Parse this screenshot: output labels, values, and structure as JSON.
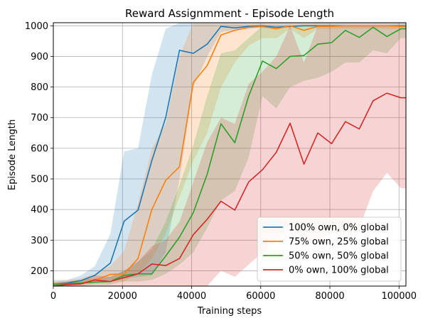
{
  "chart_data": {
    "type": "line",
    "title": "Reward Assignmment - Episode Length",
    "xlabel": "Training steps",
    "ylabel": "Episode Length",
    "xlim": [
      0,
      102000
    ],
    "ylim": [
      150,
      1010
    ],
    "xticks": [
      0,
      20000,
      40000,
      60000,
      80000,
      100000
    ],
    "yticks": [
      200,
      300,
      400,
      500,
      600,
      700,
      800,
      900,
      1000
    ],
    "grid": true,
    "legend_position": "bottom-right",
    "series": [
      {
        "name": "100% own, 0% global",
        "color": "#1f77b4",
        "x": [
          0,
          4000,
          8000,
          12000,
          16500,
          20500,
          24500,
          28500,
          32500,
          36500,
          40500,
          44500,
          48500,
          52500,
          56500,
          60500,
          64500,
          68500,
          72500,
          76500,
          80500,
          84500,
          88500,
          92500,
          96500,
          100500,
          102000
        ],
        "y": [
          158,
          160,
          168,
          185,
          225,
          362,
          398,
          560,
          700,
          920,
          910,
          940,
          998,
          993,
          998,
          1000,
          995,
          998,
          1000,
          1000,
          1000,
          1000,
          1000,
          1000,
          1000,
          1000,
          1000
        ],
        "lower": [
          165,
          162,
          162,
          165,
          170,
          175,
          180,
          185,
          260,
          500,
          800,
          900,
          980,
          985,
          990,
          993,
          990,
          995,
          998,
          998,
          998,
          998,
          998,
          998,
          998,
          998,
          998
        ],
        "upper": [
          170,
          170,
          185,
          215,
          320,
          590,
          600,
          840,
          990,
          1010,
          1010,
          1010,
          1010,
          1010,
          1010,
          1010,
          1010,
          1010,
          1010,
          1010,
          1010,
          1010,
          1010,
          1010,
          1010,
          1010,
          1010
        ]
      },
      {
        "name": "75% own, 25% global",
        "color": "#ff7f0e",
        "x": [
          0,
          4000,
          8000,
          12000,
          16500,
          20500,
          24500,
          28500,
          32500,
          36500,
          40500,
          44500,
          48500,
          52500,
          56500,
          60500,
          64500,
          68500,
          72500,
          76500,
          80500,
          84500,
          88500,
          92500,
          96500,
          100500,
          102000
        ],
        "y": [
          158,
          158,
          160,
          170,
          188,
          190,
          240,
          400,
          495,
          540,
          815,
          870,
          970,
          985,
          995,
          998,
          990,
          1000,
          985,
          998,
          998,
          1000,
          1000,
          1000,
          1000,
          998,
          998
        ],
        "lower": [
          150,
          150,
          155,
          160,
          165,
          165,
          190,
          240,
          320,
          440,
          560,
          650,
          800,
          880,
          935,
          960,
          960,
          990,
          960,
          990,
          990,
          990,
          990,
          990,
          990,
          990,
          990
        ],
        "upper": [
          165,
          170,
          175,
          190,
          215,
          265,
          420,
          600,
          680,
          900,
          1010,
          1010,
          1010,
          1010,
          1010,
          1010,
          1010,
          1010,
          1010,
          1010,
          1010,
          1010,
          1010,
          1010,
          1010,
          1010,
          1010
        ]
      },
      {
        "name": "50% own, 50% global",
        "color": "#2ca02c",
        "x": [
          0,
          4000,
          8000,
          12000,
          16500,
          20500,
          24500,
          28500,
          32500,
          36500,
          40500,
          44500,
          48500,
          52500,
          56500,
          60500,
          64500,
          68500,
          72500,
          76500,
          80500,
          84500,
          88500,
          92500,
          96500,
          100500,
          102000
        ],
        "y": [
          155,
          158,
          160,
          163,
          165,
          185,
          190,
          190,
          248,
          310,
          390,
          515,
          680,
          618,
          770,
          885,
          860,
          900,
          903,
          940,
          945,
          985,
          962,
          995,
          965,
          990,
          990
        ],
        "lower": [
          150,
          150,
          150,
          155,
          155,
          165,
          165,
          170,
          190,
          220,
          260,
          340,
          430,
          460,
          570,
          770,
          730,
          800,
          820,
          830,
          850,
          880,
          880,
          920,
          910,
          960,
          960
        ],
        "upper": [
          165,
          165,
          170,
          175,
          180,
          200,
          230,
          270,
          360,
          480,
          610,
          770,
          910,
          920,
          960,
          1000,
          990,
          1000,
          1000,
          1000,
          1000,
          1000,
          1000,
          1000,
          1000,
          1000,
          1000
        ]
      },
      {
        "name": "0% own, 100% global",
        "color": "#d62728",
        "x": [
          0,
          4000,
          8000,
          12000,
          16500,
          20500,
          24500,
          28500,
          32500,
          36500,
          40500,
          44500,
          48500,
          52500,
          56500,
          60500,
          64500,
          68500,
          72500,
          76500,
          80500,
          84500,
          88500,
          92500,
          96500,
          100500,
          102000
        ],
        "y": [
          150,
          155,
          157,
          170,
          165,
          178,
          190,
          222,
          217,
          240,
          318,
          368,
          427,
          398,
          490,
          530,
          587,
          682,
          548,
          650,
          615,
          687,
          663,
          755,
          780,
          765,
          765
        ],
        "lower": [
          150,
          150,
          150,
          150,
          150,
          150,
          150,
          150,
          150,
          150,
          150,
          150,
          200,
          180,
          220,
          260,
          300,
          340,
          300,
          300,
          320,
          320,
          340,
          460,
          520,
          470,
          470
        ],
        "upper": [
          160,
          165,
          170,
          185,
          180,
          200,
          230,
          280,
          300,
          360,
          490,
          620,
          700,
          680,
          810,
          850,
          900,
          1000,
          880,
          1000,
          1000,
          1000,
          1000,
          1000,
          1000,
          1000,
          1000
        ]
      }
    ]
  }
}
